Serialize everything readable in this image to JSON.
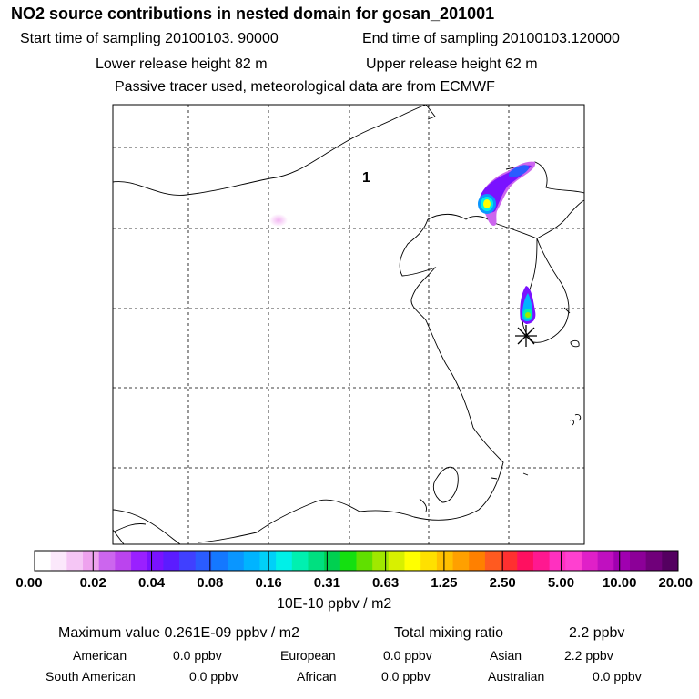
{
  "header": {
    "title": "NO2 source contributions in nested domain for gosan_201001",
    "start_label": "Start time of sampling 20100103. 90000",
    "end_label": "End time of sampling 20100103.120000",
    "lower_label": "Lower release height   82 m",
    "upper_label": "Upper release height   62 m",
    "tracer_note": "Passive tracer used, meteorological data are from ECMWF"
  },
  "chart_data": {
    "type": "heatmap",
    "title": "NO2 source contributions in nested domain for gosan_201001",
    "map_marker_label": "1",
    "receptor_marker": "gosan-receptor-asterisk",
    "colorbar": {
      "unit": "10E-10 ppbv / m2",
      "tick_labels": [
        "0.00",
        "0.02",
        "0.04",
        "0.08",
        "0.16",
        "0.31",
        "0.63",
        "1.25",
        "2.50",
        "5.00",
        "10.00",
        "20.00"
      ],
      "segment_colors": [
        "#ffffff",
        "#fbe8fb",
        "#f5c6f5",
        "#eea2ee",
        "#cc66ee",
        "#bb44ee",
        "#9a20ff",
        "#7a12ff",
        "#5b1cff",
        "#4040ff",
        "#2a5cff",
        "#1478ff",
        "#0a96ff",
        "#00b4ff",
        "#00d0f8",
        "#00f0e8",
        "#00f0b0",
        "#00e080",
        "#00d050",
        "#14e010",
        "#60e000",
        "#a0e800",
        "#d8f000",
        "#ffff00",
        "#ffe000",
        "#ffc000",
        "#ffa000",
        "#ff8000",
        "#ff5a20",
        "#ff3030",
        "#ff1060",
        "#ff1890",
        "#ff30c0",
        "#ff40d0",
        "#e020c8",
        "#c010c0",
        "#a000b0",
        "#8c0098",
        "#70007a",
        "#540060"
      ]
    },
    "hotspots": [
      {
        "region": "northeast-china-plume",
        "relative_level": "high"
      },
      {
        "region": "korea-peninsula-south",
        "relative_level": "medium"
      },
      {
        "region": "inner-mongolia-faint",
        "relative_level": "very-low"
      }
    ]
  },
  "summary": {
    "max_text": "Maximum value  0.261E-09 ppbv / m2",
    "total_text": "Total mixing ratio",
    "total_value": "2.2 ppbv",
    "regions": [
      {
        "name": "American",
        "value": "0.0 ppbv"
      },
      {
        "name": "European",
        "value": "0.0 ppbv"
      },
      {
        "name": "Asian",
        "value": "2.2 ppbv"
      },
      {
        "name": "South American",
        "value": "0.0 ppbv"
      },
      {
        "name": "African",
        "value": "0.0 ppbv"
      },
      {
        "name": "Australian",
        "value": "0.0 ppbv"
      }
    ]
  }
}
